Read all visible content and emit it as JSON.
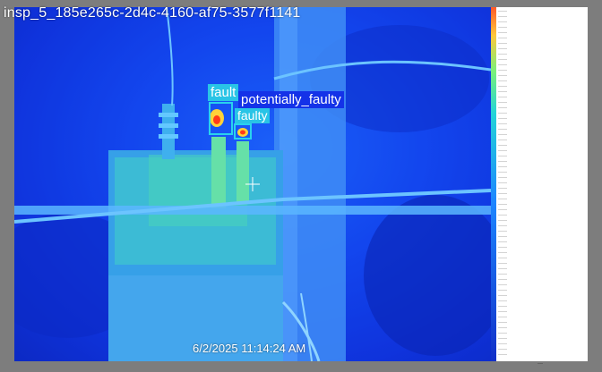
{
  "image": {
    "title": "insp_5_185e265c-2d4c-4160-af75-3577f1141",
    "timestamp": "6/2/2025 11:14:24 AM"
  },
  "detections": [
    {
      "label": "fault",
      "color": "#29c4e6"
    },
    {
      "label": "potentially_faulty",
      "color": "#1432e8"
    },
    {
      "label": "faulty",
      "color": "#29c4e6"
    }
  ],
  "palette": {
    "background": "#0f2fd8",
    "hot": "#ff3a1a",
    "warm": "#ffd23a",
    "structure": "#4fb8ff",
    "box": "#29d2ee"
  },
  "scale": {
    "bottom_mark": "—"
  }
}
